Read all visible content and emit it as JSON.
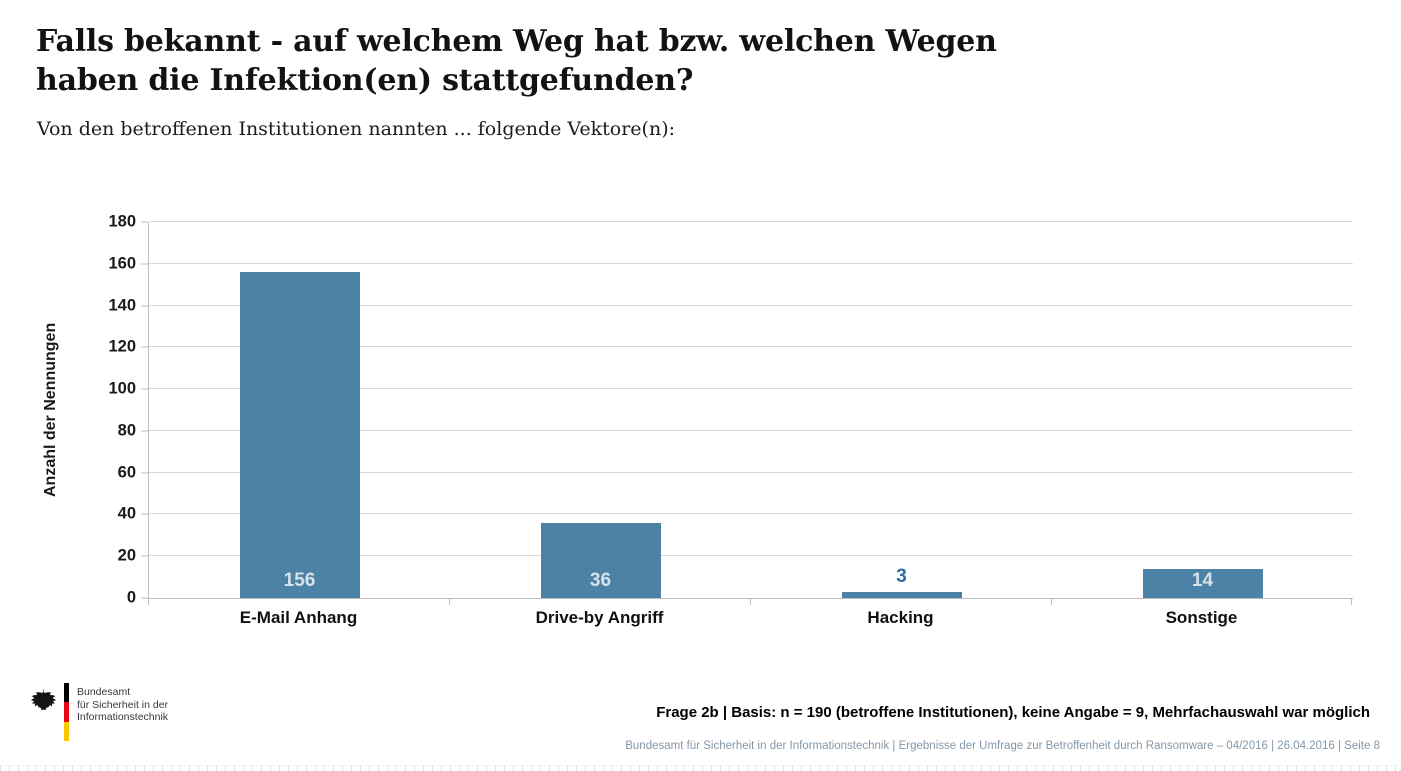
{
  "slide": {
    "title_lines": [
      "Falls bekannt - auf welchem Weg hat bzw. welchen Wegen",
      "haben die Infektion(en) stattgefunden?"
    ],
    "subtitle": "Von den betroffenen Institutionen nannten ... folgende Vektore(n):"
  },
  "chart_data": {
    "type": "bar",
    "title": "",
    "categories": [
      "E-Mail Anhang",
      "Drive-by Angriff",
      "Hacking",
      "Sonstige"
    ],
    "values": [
      156,
      36,
      3,
      14
    ],
    "xlabel": "",
    "ylabel": "Anzahl der Nennungen",
    "ylim": [
      0,
      180
    ],
    "ytick_step": 20,
    "grid": true,
    "legend": "none",
    "bar_color": "#4d82a7",
    "data_label_inside_color": "#d8e0e8",
    "data_label_outside_color": "#2e6da4",
    "outside_label_threshold": 10,
    "gridline_color": "#d9d9d9",
    "axis_line_color": "#bdbdbd"
  },
  "footer": {
    "logo": {
      "icon": "federal-eagle-icon",
      "org_lines": [
        "Bundesamt",
        "für Sicherheit in der",
        "Informationstechnik"
      ],
      "stripe_colors": [
        "#000000",
        "#e30613",
        "#f9c700"
      ]
    },
    "note": "Frage 2b | Basis: n = 190 (betroffene Institutionen), keine Angabe = 9, Mehrfachauswahl war möglich",
    "source_line": "Bundesamt für Sicherheit in der Informationstechnik | Ergebnisse der Umfrage zur Betroffenheit durch Ransomware – 04/2016 | 26.04.2016 | Seite 8"
  }
}
